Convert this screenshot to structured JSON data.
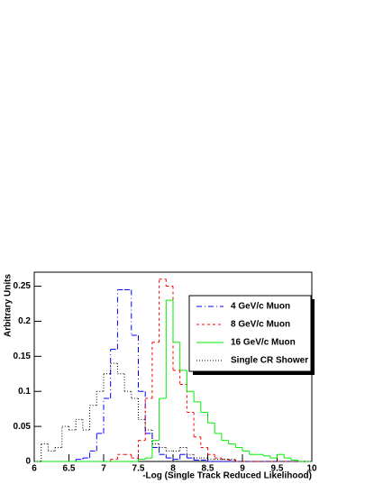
{
  "chart_data": {
    "type": "histogram",
    "x_label": "-Log (Single Track Reduced Likelihood)",
    "y_label": "Arbitrary Units",
    "bins": [
      6,
      6.1,
      6.2,
      6.3,
      6.4,
      6.5,
      6.6,
      6.7,
      6.8,
      6.9,
      7,
      7.1,
      7.2,
      7.3,
      7.4,
      7.5,
      7.6,
      7.7,
      7.8,
      7.9,
      8,
      8.1,
      8.2,
      8.3,
      8.4,
      8.5,
      8.6,
      8.7,
      8.8,
      8.9,
      9,
      9.1,
      9.2,
      9.3,
      9.4,
      9.5,
      9.6,
      9.7,
      9.8,
      9.9,
      10
    ],
    "series": [
      {
        "name": "4 GeV/c Muon",
        "color": "#0000ff",
        "dash": "6,3,1,3",
        "values": [
          0,
          0,
          0,
          0,
          0,
          0,
          0.003,
          0.005,
          0.015,
          0.04,
          0.09,
          0.16,
          0.245,
          0.245,
          0.18,
          0.1,
          0.04,
          0.02,
          0.01,
          0.005,
          0.003,
          0.01,
          0.005,
          0.002,
          0.002,
          0,
          0,
          0,
          0,
          0,
          0,
          0,
          0,
          0,
          0,
          0,
          0,
          0,
          0,
          0
        ]
      },
      {
        "name": "8 GeV/c Muon",
        "color": "#ff0000",
        "dash": "3,3",
        "values": [
          0,
          0,
          0,
          0,
          0,
          0,
          0,
          0,
          0,
          0,
          0,
          0.003,
          0.01,
          0.01,
          0.005,
          0.03,
          0.09,
          0.17,
          0.26,
          0.25,
          0.13,
          0.11,
          0.07,
          0.035,
          0.02,
          0.01,
          0.005,
          0.003,
          0.002,
          0,
          0,
          0,
          0,
          0,
          0,
          0,
          0,
          0,
          0,
          0
        ]
      },
      {
        "name": "16 GeV/c Muon",
        "color": "#00ee00",
        "dash": "none",
        "values": [
          0,
          0,
          0,
          0,
          0,
          0,
          0,
          0,
          0,
          0,
          0,
          0,
          0,
          0,
          0,
          0.003,
          0.005,
          0.03,
          0.09,
          0.23,
          0.17,
          0.13,
          0.1,
          0.085,
          0.07,
          0.055,
          0.04,
          0.03,
          0.025,
          0.02,
          0.015,
          0.01,
          0.01,
          0.008,
          0.005,
          0.01,
          0.005,
          0.002,
          0,
          0
        ]
      },
      {
        "name": "Single CR Shower",
        "color": "#000000",
        "dash": "1,2",
        "values": [
          0,
          0.025,
          0.015,
          0.02,
          0.05,
          0.045,
          0.06,
          0.045,
          0.08,
          0.1,
          0.125,
          0.14,
          0.125,
          0.1,
          0.09,
          0.06,
          0.045,
          0.025,
          0.02,
          0.015,
          0.015,
          0.02,
          0.01,
          0.005,
          0.005,
          0.003,
          0.003,
          0.003,
          0.003,
          0,
          0,
          0,
          0,
          0,
          0,
          0,
          0,
          0,
          0,
          0
        ]
      }
    ],
    "xlim": [
      6,
      10
    ],
    "xticks": [
      6,
      6.5,
      7,
      7.5,
      8,
      8.5,
      9,
      9.5,
      10
    ],
    "ylim": [
      0,
      0.27
    ],
    "yticks": [
      0,
      0.05,
      0.1,
      0.15,
      0.2,
      0.25
    ],
    "legend": "upper right"
  }
}
